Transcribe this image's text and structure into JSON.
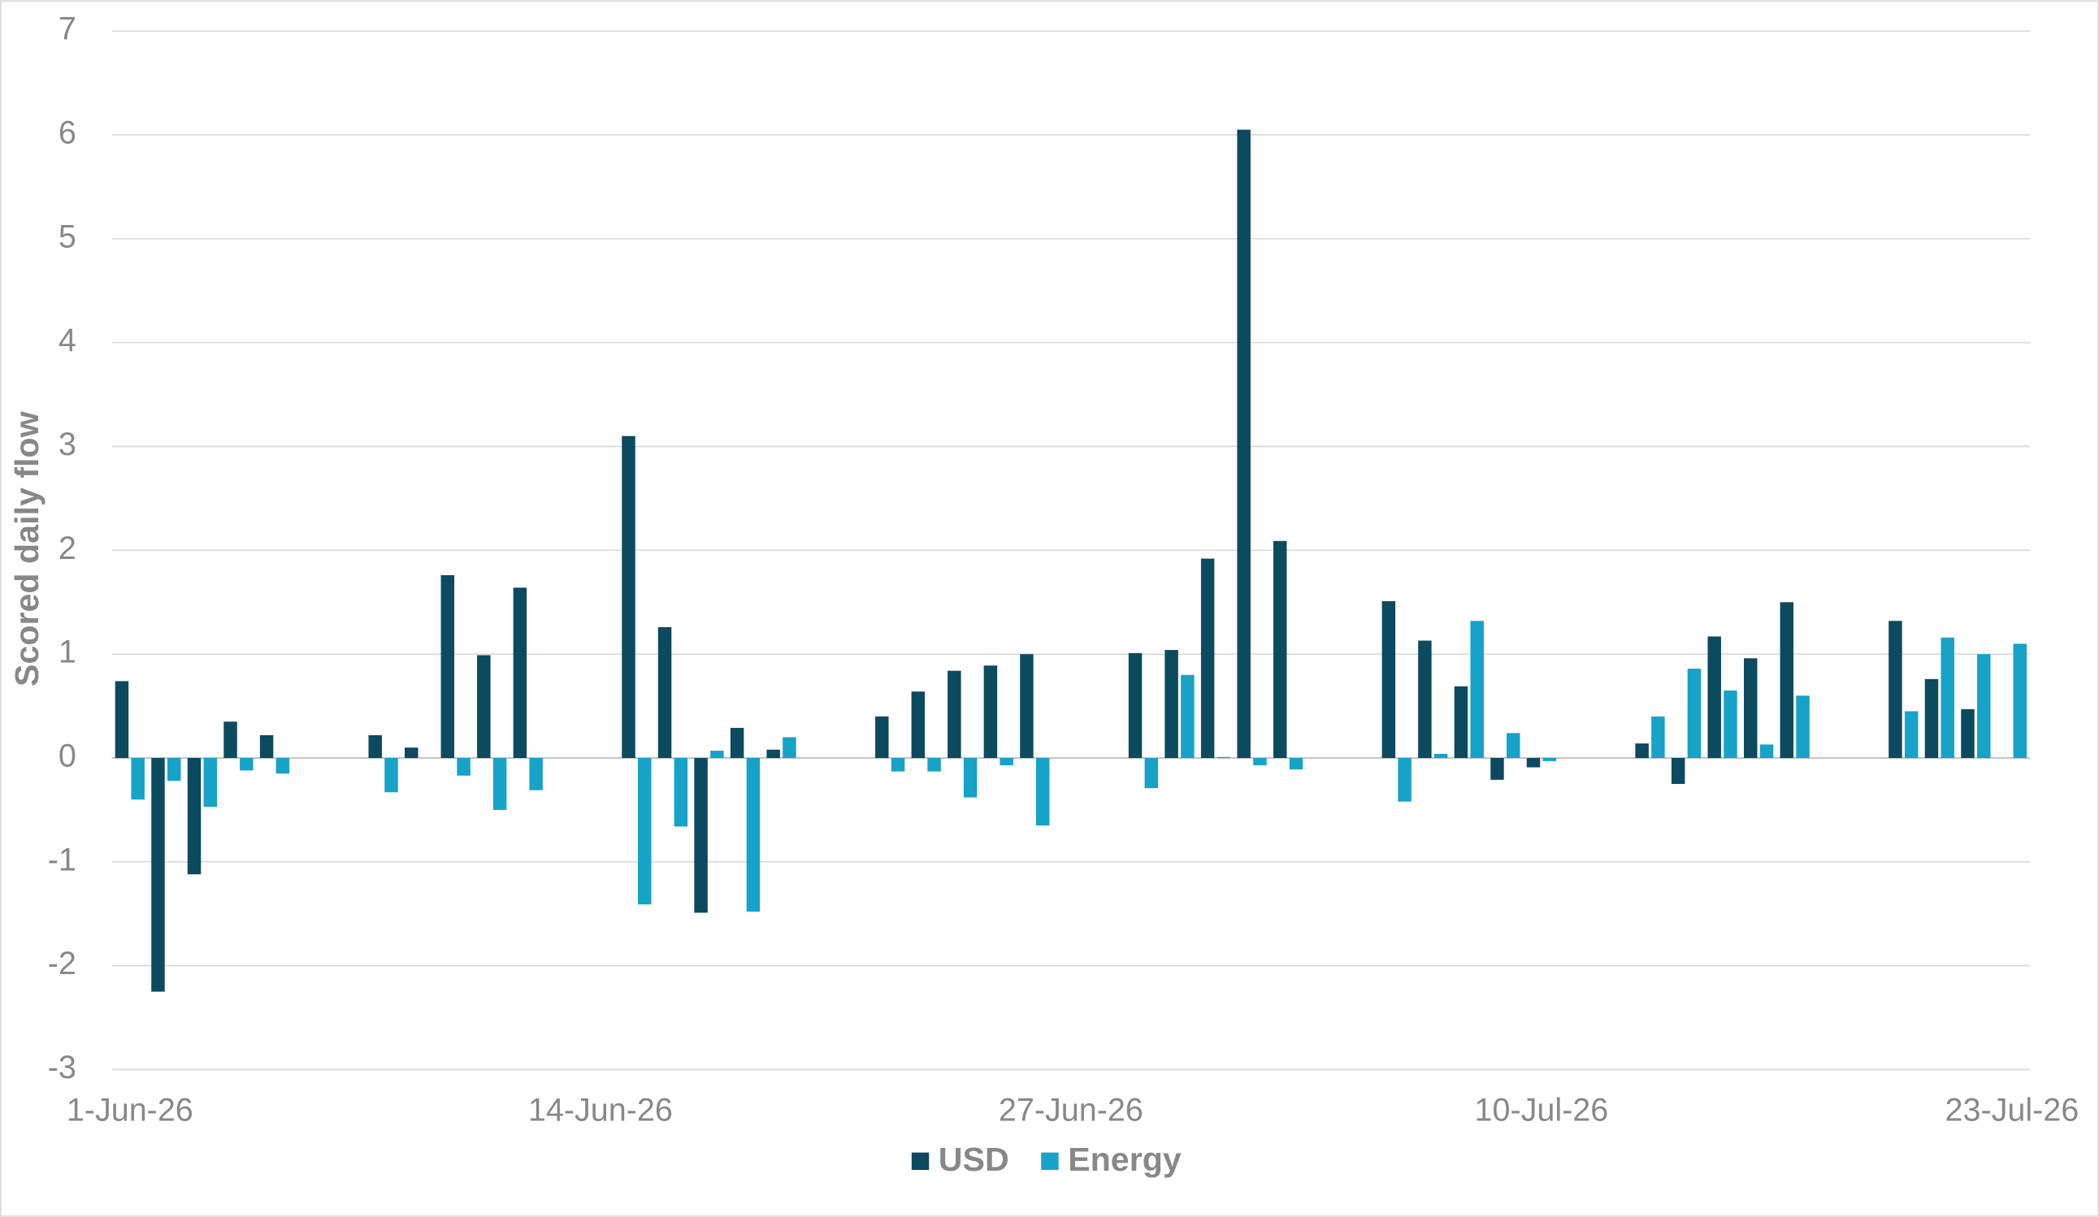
{
  "chart_data": {
    "type": "bar",
    "ylabel": "Scored daily flow",
    "categories": [
      "1-Jun-26",
      null,
      null,
      null,
      null,
      null,
      null,
      null,
      null,
      null,
      null,
      null,
      null,
      "14-Jun-26",
      null,
      null,
      null,
      null,
      null,
      null,
      null,
      null,
      null,
      null,
      null,
      null,
      "27-Jun-26",
      null,
      null,
      null,
      null,
      null,
      null,
      null,
      null,
      null,
      null,
      null,
      null,
      "10-Jul-26",
      null,
      null,
      null,
      null,
      null,
      null,
      null,
      null,
      null,
      null,
      null,
      null,
      "23-Jul-26"
    ],
    "series": [
      {
        "name": "USD",
        "color": "#0c4a60",
        "values": [
          0.74,
          -2.25,
          -1.12,
          0.35,
          0.22,
          null,
          null,
          0.22,
          0.1,
          1.76,
          0.99,
          1.64,
          null,
          null,
          3.1,
          1.26,
          -1.49,
          0.29,
          0.08,
          null,
          null,
          0.4,
          0.64,
          0.84,
          0.89,
          1.0,
          null,
          null,
          1.01,
          1.04,
          1.92,
          6.05,
          2.09,
          null,
          null,
          1.51,
          1.13,
          0.69,
          -0.21,
          -0.09,
          null,
          null,
          0.14,
          -0.25,
          1.17,
          0.96,
          1.5,
          null,
          null,
          1.32,
          0.76,
          0.47,
          null
        ]
      },
      {
        "name": "Energy",
        "color": "#17a2c8",
        "values": [
          -0.4,
          -0.22,
          -0.47,
          -0.12,
          -0.15,
          null,
          null,
          -0.33,
          0,
          -0.17,
          -0.5,
          -0.31,
          null,
          null,
          -1.41,
          -0.66,
          0.07,
          -1.48,
          0.2,
          null,
          null,
          -0.13,
          -0.13,
          -0.38,
          -0.07,
          -0.65,
          null,
          null,
          -0.29,
          0.8,
          0.01,
          -0.07,
          -0.11,
          null,
          null,
          -0.42,
          0.04,
          1.32,
          0.24,
          -0.03,
          null,
          null,
          0.4,
          0.86,
          0.65,
          0.13,
          0.6,
          null,
          null,
          0.45,
          1.16,
          1.0,
          1.1
        ]
      }
    ],
    "ylim": [
      -3,
      7
    ],
    "yticks": [
      -3,
      -2,
      -1,
      0,
      1,
      2,
      3,
      4,
      5,
      6,
      7
    ],
    "grid": true,
    "legend": "bottom"
  }
}
